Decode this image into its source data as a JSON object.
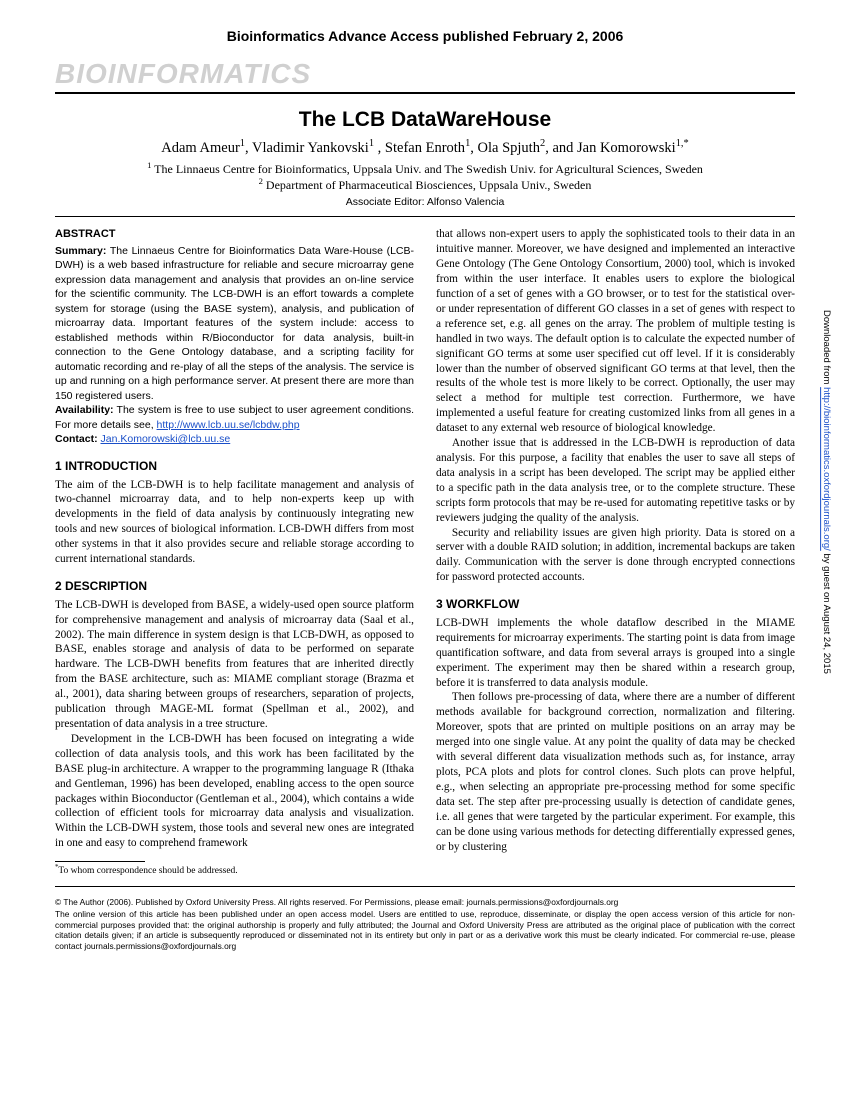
{
  "header": {
    "advance_access": "Bioinformatics Advance Access published February 2, 2006",
    "journal": "BIOINFORMATICS"
  },
  "article": {
    "title": "The LCB DataWareHouse",
    "authors_html": "Adam Ameur<sup>1</sup>, Vladimir Yankovski<sup>1</sup> , Stefan Enroth<sup>1</sup>, Ola Spjuth<sup>2</sup>, and Jan Komorowski<sup>1,*</sup>",
    "affil1": "The Linnaeus Centre for Bioinformatics, Uppsala Univ. and The Swedish Univ. for Agricultural Sciences, Sweden",
    "affil2": "Department of Pharmaceutical Biosciences, Uppsala Univ., Sweden",
    "assoc_editor": "Associate Editor: Alfonso Valencia"
  },
  "abstract": {
    "heading": "ABSTRACT",
    "summary_label": "Summary:",
    "summary": "The Linnaeus Centre for Bioinformatics Data Ware-House (LCB-DWH) is a web based infrastructure for reliable and secure microarray gene expression data management and analysis that provides an on-line service for the scientific community. The LCB-DWH is an effort towards a complete system for storage (using the BASE system), analysis, and publication of microarray data. Important features of the system include: access to established methods within R/Bioconductor for data analysis, built-in connection to the Gene Ontology database, and a scripting facility for automatic recording and re-play of all the steps of the analysis. The service is up and running on a high performance server. At present there are more than 150 registered users.",
    "availability_label": "Availability:",
    "availability": "The system is free to use subject to user agreement conditions. For more details see, ",
    "availability_link": "http://www.lcb.uu.se/lcbdw.php",
    "contact_label": "Contact:",
    "contact_link": "Jan.Komorowski@lcb.uu.se"
  },
  "sections": {
    "s1_heading": "1    INTRODUCTION",
    "s1_p1": "The aim of the LCB-DWH is to help facilitate management and analysis of two-channel microarray data, and to help non-experts keep up with developments in the field of data analysis by continuously integrating new tools and new sources of biological information. LCB-DWH differs from most other systems in that it also provides secure and reliable storage according to current international standards.",
    "s2_heading": "2    DESCRIPTION",
    "s2_p1": "The LCB-DWH is developed from BASE, a widely-used open source platform for comprehensive management and analysis of microarray data (Saal et al., 2002). The main difference in system design is that LCB-DWH, as opposed to BASE, enables storage and analysis of data to be performed on separate hardware. The LCB-DWH benefits from features that are inherited directly from the BASE architecture, such as: MIAME compliant storage (Brazma et al., 2001), data sharing between groups of researchers, separation of projects, publication through MAGE-ML format (Spellman et al., 2002), and presentation of data analysis in a tree structure.",
    "s2_p2": "Development in the LCB-DWH has been focused on integrating a wide collection of data analysis tools, and this work has been facilitated by the BASE plug-in architecture. A wrapper to the programming language R (Ithaka and Gentleman, 1996) has been developed, enabling access to the open source packages within Bioconductor (Gentleman et al., 2004), which contains a wide collection of efficient tools for microarray data analysis and visualization. Within the LCB-DWH system, those tools and several new ones are integrated in one and easy to comprehend framework",
    "s2_right_p1": "that allows non-expert users to apply the sophisticated tools to their data in an intuitive manner. Moreover, we have designed and implemented an interactive Gene Ontology (The Gene Ontology Consortium, 2000) tool, which is invoked from within the user interface. It enables users to explore the biological function of a set of genes with a GO browser, or to test for the statistical over- or under representation of different GO classes in a set of genes with respect to a reference set, e.g. all genes on the array. The problem of multiple testing is handled in two ways. The default option is to calculate the expected number of significant GO terms at some user specified cut off level. If it is considerably lower than the number of observed significant GO terms at that level, then the results of the whole test is more likely to be correct. Optionally, the user may select a method for multiple test correction. Furthermore, we have implemented a useful feature for creating customized links from all genes in a dataset to any external web resource of biological knowledge.",
    "s2_right_p2": "Another issue that is addressed in the LCB-DWH is reproduction of data analysis. For this purpose, a facility that enables the user to save all steps of data analysis in a script has been developed. The script may be applied either to a specific path in the data analysis tree, or to the complete structure. These scripts form protocols that may be re-used for automating repetitive tasks or by reviewers judging the quality of the analysis.",
    "s2_right_p3": "Security and reliability issues are given high priority. Data is stored on a server with a double RAID solution; in addition, incremental backups are taken daily. Communication with the server is done through encrypted connections for password protected accounts.",
    "s3_heading": "3    WORKFLOW",
    "s3_p1": "LCB-DWH implements the whole dataflow described in the MIAME requirements for microarray experiments. The starting point is data from image quantification software, and data from several arrays is grouped into a single experiment. The experiment may then be shared within a research group, before it is transferred to data analysis module.",
    "s3_p2": "Then follows pre-processing of data, where there are a number of different methods available for background correction, normalization and filtering. Moreover, spots that are printed on multiple positions on an array may be merged into one single value. At any point the quality of data may be checked with several different data visualization methods such as, for instance, array plots, PCA plots and plots for control clones. Such plots can prove helpful, e.g., when selecting an appropriate pre-processing method for some specific data set. The step after pre-processing usually is detection of candidate genes, i.e. all genes that were targeted by the particular experiment. For example, this can be done using various methods for detecting differentially expressed genes, or by clustering"
  },
  "footnote": "To whom correspondence should be addressed.",
  "copyright": "© The Author (2006). Published by Oxford University Press. All rights reserved. For Permissions, please email: journals.permissions@oxfordjournals.org",
  "license": "The online version of this article has been published under an open access model. Users are entitled to use, reproduce, disseminate, or display the open access version of this article for non-commercial purposes provided that: the original authorship is properly and fully attributed; the Journal and Oxford University Press are attributed as the original place of publication with the correct citation details given; if an article is subsequently reproduced or disseminated not in its entirety but only in part or as a derivative work this must be clearly indicated. For commercial re-use, please contact journals.permissions@oxfordjournals.org",
  "sidebar": {
    "prefix": "Downloaded from ",
    "link": "http://bioinformatics.oxfordjournals.org/",
    "suffix": " by guest on August 24, 2015"
  }
}
